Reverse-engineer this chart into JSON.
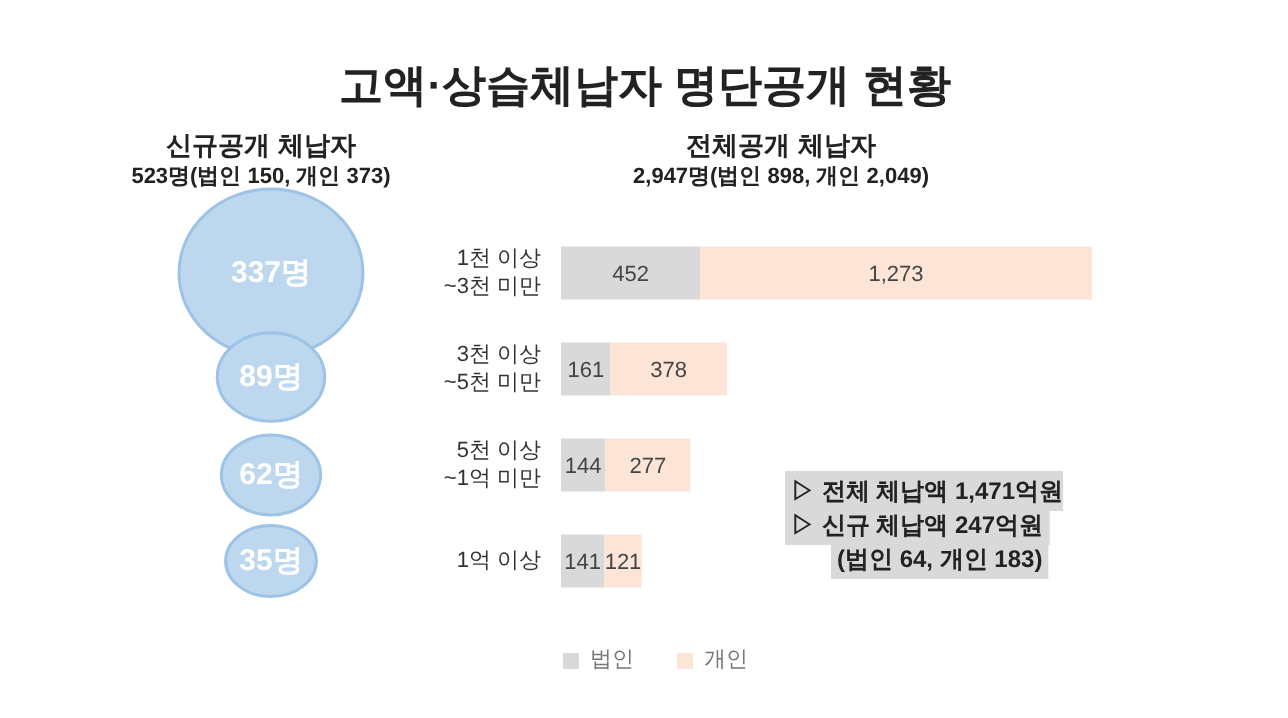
{
  "chart_data": [
    {
      "type": "other",
      "title": "고액·상습체납자 명단공개 현황",
      "subtitle": "신규공개 체납자",
      "annotations": [
        "523명(법인 150, 개인 373)"
      ],
      "categories": [
        null,
        null,
        null,
        null
      ],
      "values": [
        337,
        89,
        62,
        35
      ],
      "value_labels": [
        "337명",
        "89명",
        "62명",
        "35명"
      ],
      "color": "#bdd7ee"
    },
    {
      "type": "bar",
      "orientation": "horizontal",
      "stacked": true,
      "title": "전체공개 체납자",
      "subtitle": "2,947명(법인 898, 개인 2,049)",
      "categories": [
        "1천 이상\n~3천 미만",
        "3천 이상\n~5천 미만",
        "5천 이상\n~1억 미만",
        "1억 이상"
      ],
      "series": [
        {
          "name": "법인",
          "color": "#d9d9d9",
          "values": [
            452,
            161,
            144,
            141
          ],
          "value_labels": [
            "452",
            "161",
            "144",
            "141"
          ]
        },
        {
          "name": "개인",
          "color": "#fce4d6",
          "values": [
            1273,
            378,
            277,
            121
          ],
          "value_labels": [
            "1,273",
            "378",
            "277",
            "121"
          ]
        }
      ],
      "annotations": [
        "▷ 전체 체납액 1,471억원",
        "▷ 신규 체납액  247억원",
        "(법인 64, 개인 183)"
      ],
      "legend": "bottom"
    }
  ]
}
